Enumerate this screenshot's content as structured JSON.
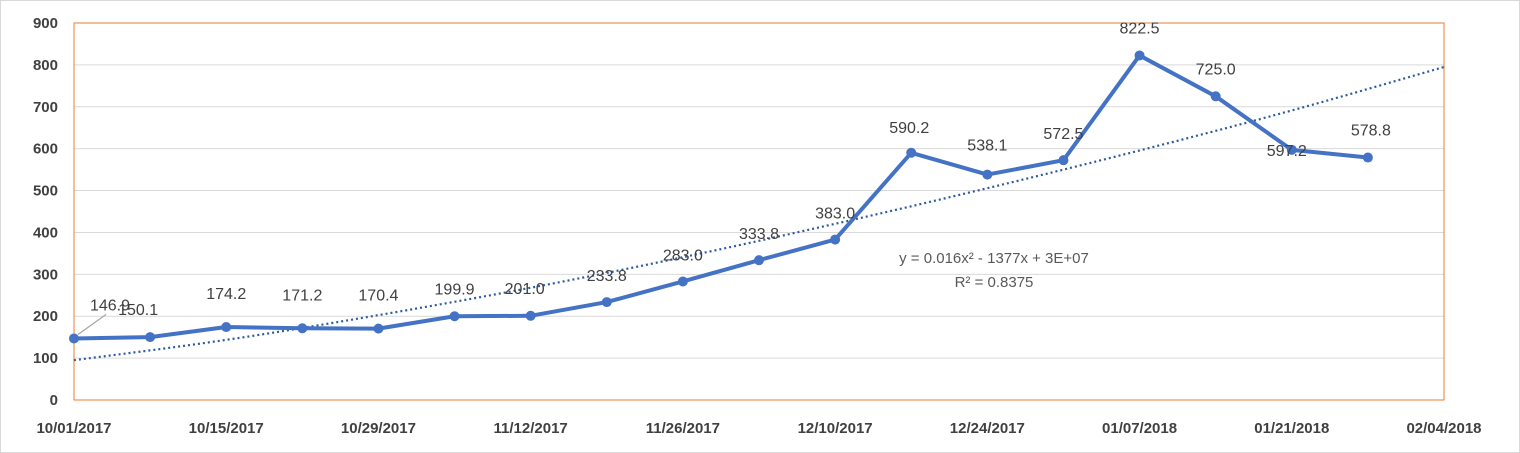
{
  "chart_data": {
    "type": "line",
    "title": "",
    "xlabel": "",
    "ylabel": "",
    "ylim": [
      0,
      900
    ],
    "yticks": [
      "0",
      "100",
      "200",
      "300",
      "400",
      "500",
      "600",
      "700",
      "800",
      "900"
    ],
    "xlim": [
      "2017-10-01",
      "2018-02-04"
    ],
    "xticks": [
      "10/01/2017",
      "10/15/2017",
      "10/29/2017",
      "11/12/2017",
      "11/26/2017",
      "12/10/2017",
      "12/24/2017",
      "01/07/2018",
      "01/21/2018",
      "02/04/2018"
    ],
    "grid": "horizontal",
    "legend": "none",
    "series": [
      {
        "x": [
          "2017-10-01",
          "2017-10-08",
          "2017-10-15",
          "2017-10-22",
          "2017-10-29",
          "2017-11-05",
          "2017-11-12",
          "2017-11-19",
          "2017-11-26",
          "2017-12-03",
          "2017-12-10",
          "2017-12-17",
          "2017-12-24",
          "2017-12-31",
          "2018-01-07",
          "2018-01-14",
          "2018-01-21",
          "2018-01-28"
        ],
        "values": [
          146.9,
          150.1,
          174.2,
          171.2,
          170.4,
          199.9,
          201.0,
          233.8,
          283.0,
          333.8,
          383.0,
          590.2,
          538.1,
          572.5,
          822.5,
          725.0,
          597.2,
          578.8
        ],
        "labels": [
          "146.9",
          "150.1",
          "174.2",
          "171.2",
          "170.4",
          "199.9",
          "201.0",
          "233.8",
          "283.0",
          "333.8",
          "383.0",
          "590.2",
          "538.1",
          "572.5",
          "822.5",
          "725.0",
          "597.2",
          "578.8"
        ],
        "color": "#4472c4"
      }
    ],
    "trendline": {
      "type": "polynomial",
      "order": 2,
      "color": "#2e5b9e",
      "style": "dotted",
      "x": [
        "2017-10-01",
        "2017-10-15",
        "2017-10-29",
        "2017-11-12",
        "2017-11-26",
        "2017-12-10",
        "2017-12-24",
        "2018-01-07",
        "2018-01-21",
        "2018-02-04"
      ],
      "values": [
        95,
        142,
        202,
        267,
        340,
        420,
        505,
        595,
        690,
        795
      ],
      "equation": "y = 0.016x² - 1377x + 3E+07",
      "r_squared": "R² = 0.8375"
    },
    "plot_border_color": "#ed7d31",
    "gridline_color": "#d9d9d9"
  }
}
